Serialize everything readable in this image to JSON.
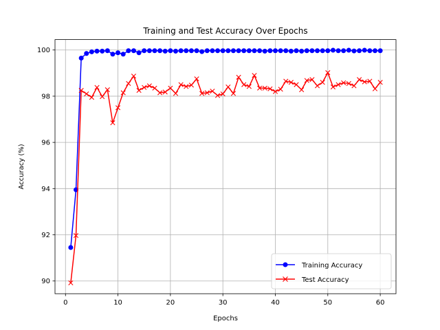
{
  "chart_data": {
    "type": "line",
    "title": "Training and Test Accuracy Over Epochs",
    "xlabel": "Epochs",
    "ylabel": "Accuracy (%)",
    "xlim": [
      -2,
      63
    ],
    "ylim": [
      89.45,
      100.45
    ],
    "xticks": [
      0,
      10,
      20,
      30,
      40,
      50,
      60
    ],
    "yticks": [
      90,
      92,
      94,
      96,
      98,
      100
    ],
    "grid": true,
    "legend_position": "lower-right",
    "x": [
      1,
      2,
      3,
      4,
      5,
      6,
      7,
      8,
      9,
      10,
      11,
      12,
      13,
      14,
      15,
      16,
      17,
      18,
      19,
      20,
      21,
      22,
      23,
      24,
      25,
      26,
      27,
      28,
      29,
      30,
      31,
      32,
      33,
      34,
      35,
      36,
      37,
      38,
      39,
      40,
      41,
      42,
      43,
      44,
      45,
      46,
      47,
      48,
      49,
      50,
      51,
      52,
      53,
      54,
      55,
      56,
      57,
      58,
      59,
      60
    ],
    "series": [
      {
        "name": "Training Accuracy",
        "color": "#0000ff",
        "marker": "circle",
        "values": [
          91.45,
          93.95,
          99.65,
          99.85,
          99.92,
          99.95,
          99.95,
          99.97,
          99.82,
          99.88,
          99.82,
          99.97,
          99.97,
          99.88,
          99.97,
          99.97,
          99.97,
          99.97,
          99.95,
          99.97,
          99.95,
          99.97,
          99.97,
          99.97,
          99.97,
          99.93,
          99.97,
          99.97,
          99.97,
          99.97,
          99.97,
          99.97,
          99.97,
          99.97,
          99.97,
          99.97,
          99.97,
          99.95,
          99.97,
          99.97,
          99.97,
          99.97,
          99.95,
          99.97,
          99.95,
          99.97,
          99.97,
          99.97,
          99.97,
          99.97,
          99.99,
          99.97,
          99.97,
          99.99,
          99.96,
          99.97,
          99.99,
          99.97,
          99.97,
          99.97
        ]
      },
      {
        "name": "Test Accuracy",
        "color": "#ff0000",
        "marker": "x",
        "values": [
          89.92,
          91.97,
          98.25,
          98.1,
          97.95,
          98.38,
          97.98,
          98.28,
          96.85,
          97.5,
          98.15,
          98.55,
          98.87,
          98.25,
          98.38,
          98.45,
          98.35,
          98.15,
          98.18,
          98.35,
          98.12,
          98.5,
          98.42,
          98.48,
          98.75,
          98.12,
          98.15,
          98.22,
          98.03,
          98.1,
          98.4,
          98.12,
          98.82,
          98.5,
          98.42,
          98.9,
          98.35,
          98.35,
          98.32,
          98.2,
          98.3,
          98.65,
          98.6,
          98.5,
          98.28,
          98.68,
          98.72,
          98.45,
          98.6,
          99.02,
          98.4,
          98.5,
          98.58,
          98.55,
          98.45,
          98.72,
          98.62,
          98.65,
          98.32,
          98.6
        ]
      }
    ]
  }
}
